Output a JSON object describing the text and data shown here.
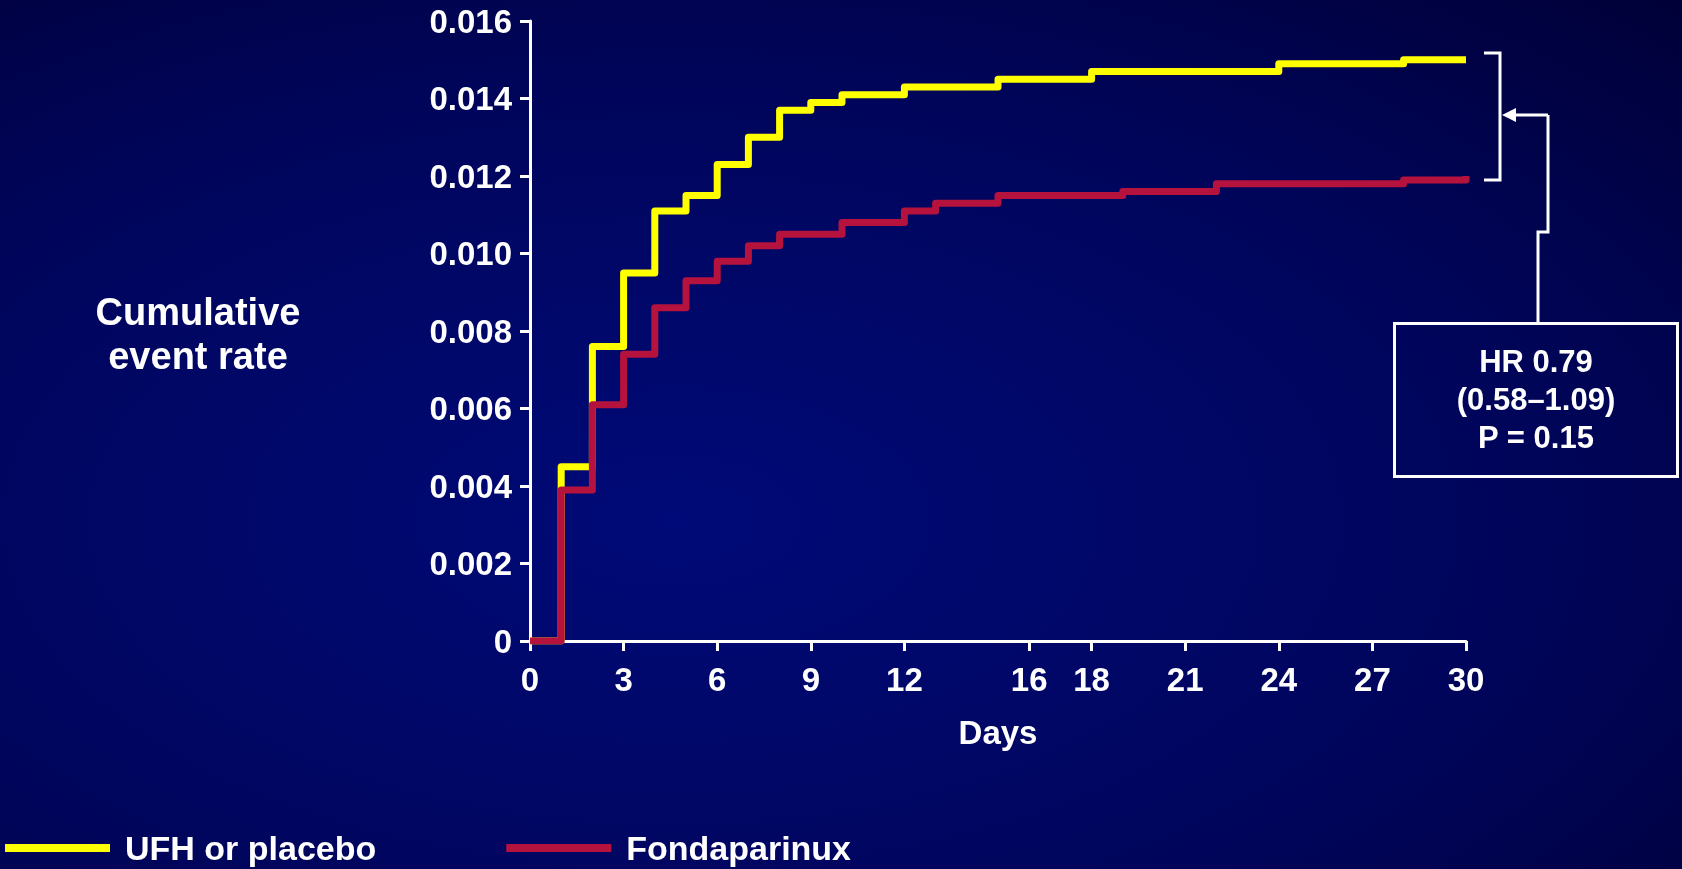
{
  "chart_data": {
    "type": "step",
    "xlabel": "Days",
    "ylabel": "Cumulative event rate",
    "xlim": [
      0,
      30
    ],
    "xticks": [
      0,
      3,
      6,
      9,
      12,
      16,
      18,
      21,
      24,
      27,
      30
    ],
    "ylim": [
      0,
      0.016
    ],
    "yticks": [
      0,
      0.002,
      0.004,
      0.006,
      0.008,
      {
        "value": 0.01,
        "label": "0.010"
      },
      0.012,
      0.014,
      0.016
    ],
    "series": [
      {
        "name": "UFH or placebo",
        "color": "#ffff00",
        "x": [
          0,
          1,
          2,
          3,
          4,
          5,
          6,
          7,
          8,
          9,
          10,
          12,
          15,
          18,
          24,
          28,
          30
        ],
        "values": [
          0,
          0.0045,
          0.0076,
          0.0095,
          0.0111,
          0.0115,
          0.0123,
          0.013,
          0.0137,
          0.0139,
          0.0141,
          0.0143,
          0.0145,
          0.0147,
          0.0149,
          0.015,
          0.015
        ]
      },
      {
        "name": "Fondaparinux",
        "color": "#b5123e",
        "x": [
          0,
          1,
          2,
          3,
          4,
          5,
          6,
          7,
          8,
          10,
          12,
          13,
          15,
          19,
          22,
          28,
          30
        ],
        "values": [
          0,
          0.0039,
          0.0061,
          0.0074,
          0.0086,
          0.0093,
          0.0098,
          0.0102,
          0.0105,
          0.0108,
          0.0111,
          0.0113,
          0.0115,
          0.0116,
          0.0118,
          0.0119,
          0.012
        ]
      }
    ],
    "annotations": [
      "HR 0.79\n(0.58–1.09)\nP = 0.15"
    ],
    "legend": "bottom left",
    "grid": false,
    "marker": "none",
    "line_style": "solid"
  }
}
